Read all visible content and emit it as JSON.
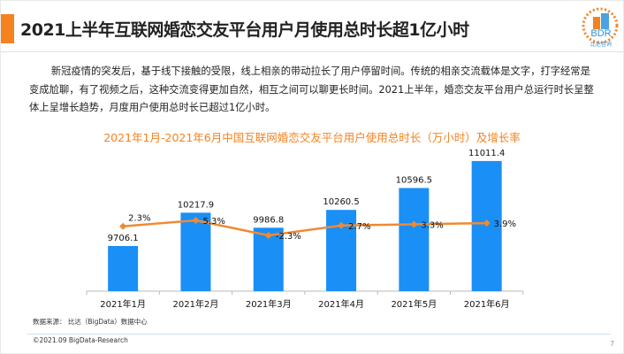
{
  "header": {
    "title": "2021上半年互联网婚恋交友平台用户月使用总时长超1亿小时",
    "logo_text": "BDR",
    "logo_sub": "比达咨询",
    "accent": "#f5821f"
  },
  "paragraph": "新冠疫情的突发后，基于线下接触的受限，线上相亲的带动拉长了用户停留时间。传统的相亲交流载体是文字，打字经常是变成尬聊，有了视频之后，这种交流变得更加自然，相互之间可以聊更长时间。2021上半年，婚恋交友平台用户总运行时长呈整体上呈增长趋势，月度用户使用总时长已超过1亿小时。",
  "chart_data": {
    "type": "bar+line",
    "title": "2021年1月-2021年6月中国互联网婚恋交友平台用户使用总时长（万小时）及增长率",
    "categories": [
      "2021年1月",
      "2021年2月",
      "2021年3月",
      "2021年4月",
      "2021年5月",
      "2021年6月"
    ],
    "series": [
      {
        "type": "bar",
        "values": [
          9706.1,
          10217.9,
          9986.8,
          10260.5,
          10596.5,
          11011.4
        ],
        "labels": [
          "9706.1",
          "10217.9",
          "9986.8",
          "10260.5",
          "10596.5",
          "11011.4"
        ],
        "color": "#1a8ff5"
      },
      {
        "type": "line",
        "values": [
          2.3,
          5.3,
          -2.3,
          2.7,
          3.3,
          3.9
        ],
        "labels": [
          "2.3%",
          "5.3%",
          "-2.3%",
          "2.7%",
          "3.3%",
          "3.9%"
        ],
        "color": "#ee8a34"
      }
    ],
    "grid": false
  },
  "footer": {
    "source": "数据来源： 比达（BigData）数据中心",
    "copyright": "©2021.09 BigData-Research",
    "page": "7"
  }
}
